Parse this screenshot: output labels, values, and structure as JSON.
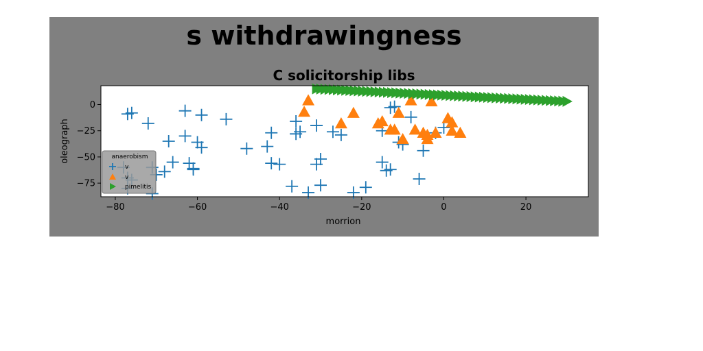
{
  "chart_data": {
    "type": "scatter",
    "suptitle": "s withdrawingness",
    "title": "C solicitorship libs",
    "xlabel": "morrion",
    "ylabel": "oleograph",
    "xlim": [
      -83.5,
      35.2
    ],
    "ylim": [
      -88,
      18
    ],
    "xticks": [
      -80,
      -60,
      -40,
      -20,
      0,
      20
    ],
    "yticks": [
      0,
      -25,
      -50,
      -75
    ],
    "xtick_labels": [
      "−80",
      "−60",
      "−40",
      "−20",
      "0",
      "20"
    ],
    "ytick_labels": [
      "0",
      "−25",
      "−50",
      "−75"
    ],
    "grid": false,
    "legend": {
      "title": "anaerobism",
      "location": "lower-left"
    },
    "series": [
      {
        "name": "v",
        "marker": "plus",
        "color": "#1f77b4",
        "points": [
          [
            -77,
            -9
          ],
          [
            -76,
            -8
          ],
          [
            -72,
            -18
          ],
          [
            -63,
            -6
          ],
          [
            -59,
            -10
          ],
          [
            -53,
            -14
          ],
          [
            -67,
            -35
          ],
          [
            -63,
            -30
          ],
          [
            -60,
            -36
          ],
          [
            -59,
            -41
          ],
          [
            -48,
            -42
          ],
          [
            -43,
            -40
          ],
          [
            -42,
            -27
          ],
          [
            -36,
            -16
          ],
          [
            -36,
            -28
          ],
          [
            -35,
            -26
          ],
          [
            -31,
            -20
          ],
          [
            -27,
            -26
          ],
          [
            -25,
            -29
          ],
          [
            -13,
            -3
          ],
          [
            -12,
            -2
          ],
          [
            -8,
            -12
          ],
          [
            -15,
            -25
          ],
          [
            -11,
            -36
          ],
          [
            -10,
            -38
          ],
          [
            -5,
            -44
          ],
          [
            -2,
            -27
          ],
          [
            0,
            -22
          ],
          [
            -66,
            -55
          ],
          [
            -62,
            -56
          ],
          [
            -61,
            -61
          ],
          [
            -61,
            -62
          ],
          [
            -42,
            -56
          ],
          [
            -40,
            -57
          ],
          [
            -31,
            -57
          ],
          [
            -30,
            -52
          ],
          [
            -15,
            -55
          ],
          [
            -14,
            -63
          ],
          [
            -13,
            -62
          ],
          [
            -37,
            -78
          ],
          [
            -33,
            -84
          ],
          [
            -30,
            -77
          ],
          [
            -22,
            -84
          ],
          [
            -19,
            -79
          ],
          [
            -6,
            -71
          ],
          [
            -78,
            -60
          ],
          [
            -71,
            -60
          ],
          [
            -70,
            -67
          ],
          [
            -68,
            -64
          ],
          [
            -77,
            -70
          ],
          [
            -76,
            -72
          ],
          [
            -77,
            -80
          ],
          [
            -71,
            -85
          ]
        ]
      },
      {
        "name": "v",
        "marker": "triangle-up",
        "color": "#ff7f0e",
        "points": [
          [
            -34,
            -7
          ],
          [
            -33,
            4
          ],
          [
            -25,
            -18
          ],
          [
            -22,
            -8
          ],
          [
            -16,
            -18
          ],
          [
            -15,
            -16
          ],
          [
            -13,
            -24
          ],
          [
            -11,
            -8
          ],
          [
            -8,
            4
          ],
          [
            -12,
            -24
          ],
          [
            -10,
            -33
          ],
          [
            -7,
            -24
          ],
          [
            -5,
            -27
          ],
          [
            -4,
            -33
          ],
          [
            -4,
            -29
          ],
          [
            -3,
            3
          ],
          [
            -2,
            -27
          ],
          [
            1,
            -13
          ],
          [
            2,
            -17
          ],
          [
            2,
            -25
          ],
          [
            4,
            -27
          ]
        ]
      },
      {
        "name": "pimelitis",
        "marker": "triangle-right",
        "color": "#2ca02c",
        "x_start": -31,
        "x_end": 30,
        "y_start": 15,
        "y_end": 3,
        "count": 61
      }
    ]
  }
}
